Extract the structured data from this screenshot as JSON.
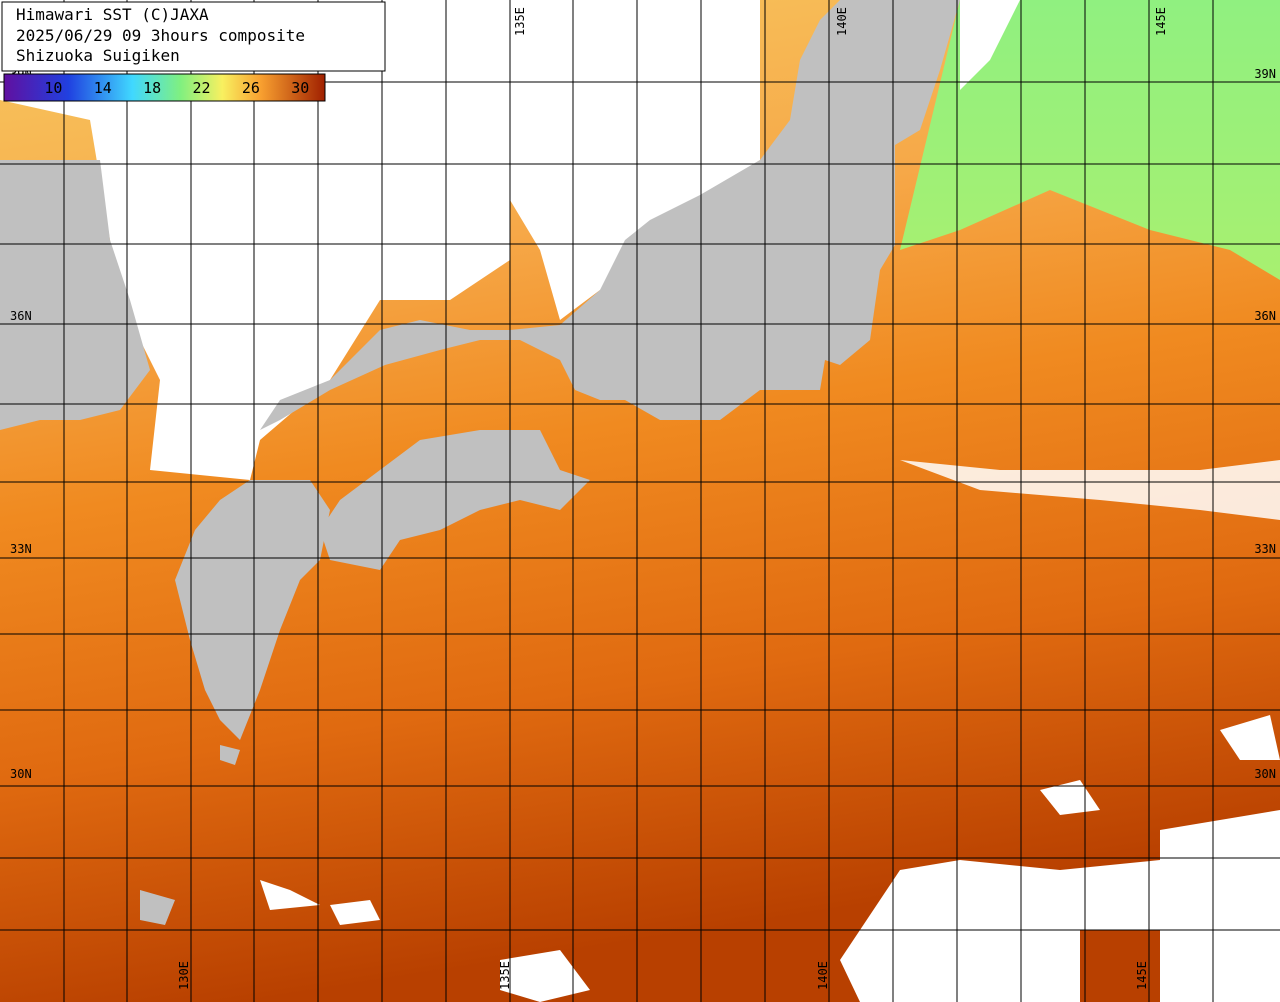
{
  "header": {
    "lines": [
      "Himawari SST (C)JAXA",
      "2025/06/29 09 3hours composite",
      "Shizuoka Suigiken"
    ]
  },
  "colorbar": {
    "range": [
      6,
      32
    ],
    "ticks": [
      10,
      14,
      18,
      22,
      26,
      30
    ]
  },
  "graticule": {
    "lat_labels": [
      "39N",
      "36N",
      "33N",
      "30N"
    ],
    "lon_labels_top": [
      "135E",
      "140E",
      "145E"
    ],
    "lon_labels_bottom": [
      "130E",
      "135E",
      "140E",
      "145E"
    ]
  }
}
